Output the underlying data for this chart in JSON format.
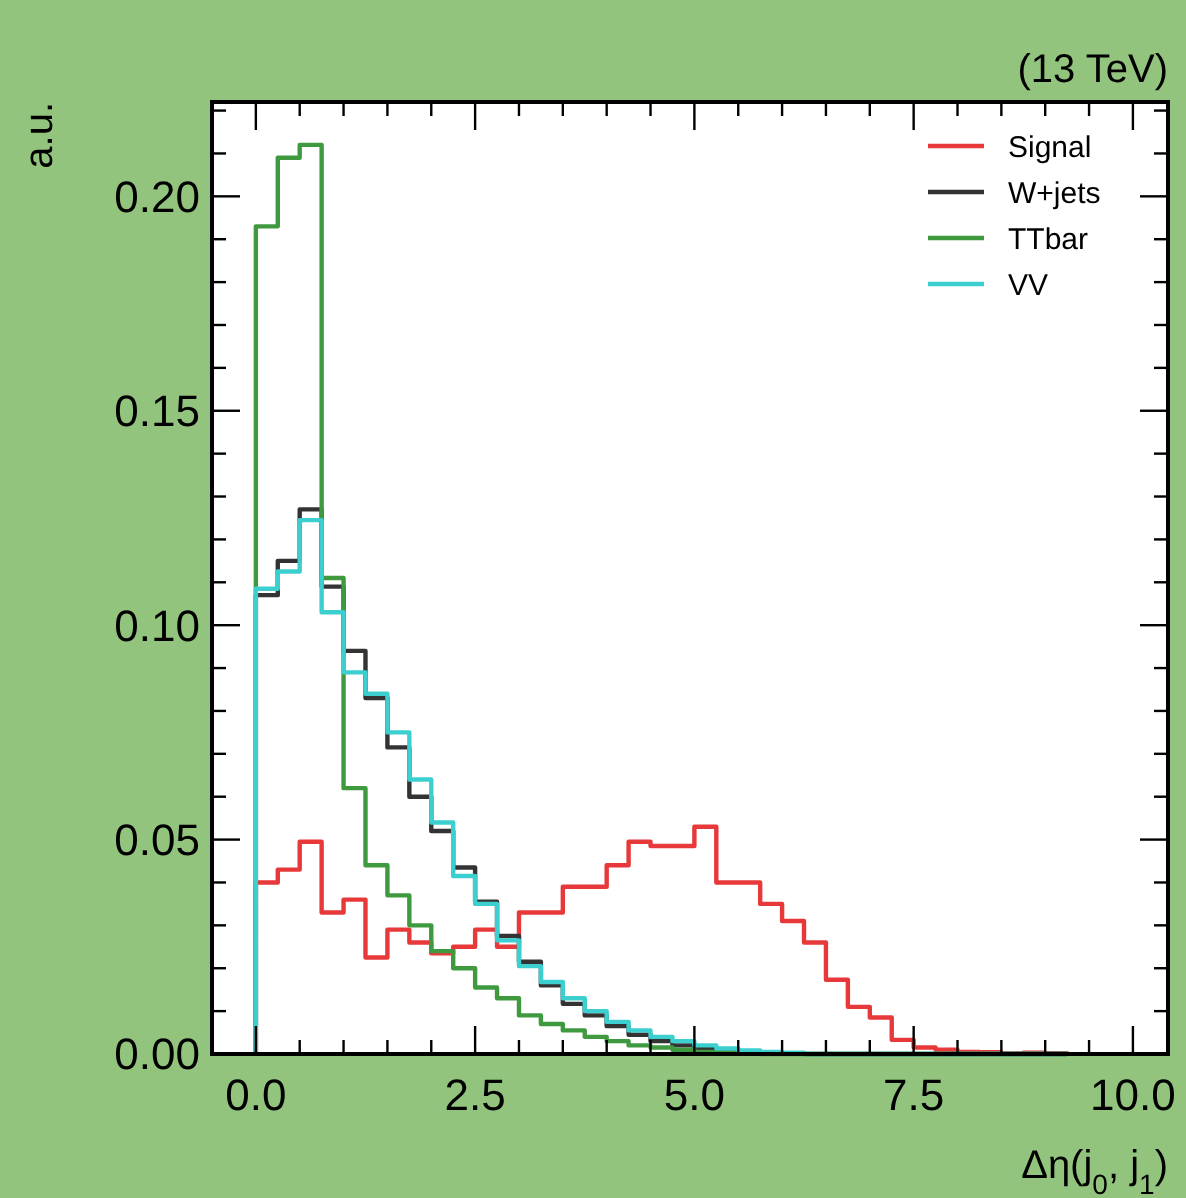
{
  "chart_data": {
    "type": "histogram",
    "title": "(13 TeV)",
    "xlabel": "Δη(j$_{0}$, j$_{1}$)",
    "ylabel": "a.u.",
    "bins": [
      0,
      0.25,
      0.5,
      0.75,
      1,
      1.25,
      1.5,
      1.75,
      2,
      2.25,
      2.5,
      2.75,
      3,
      3.25,
      3.5,
      3.75,
      4,
      4.25,
      4.5,
      4.75,
      5,
      5.25,
      5.5,
      5.75,
      6,
      6.25,
      6.5,
      6.75,
      7,
      7.25,
      7.5,
      7.75,
      8,
      8.25,
      8.5,
      8.75,
      9,
      9.25
    ],
    "series": [
      {
        "name": "Signal",
        "color": "#e8393a",
        "values": [
          0.04,
          0.043,
          0.0495,
          0.033,
          0.036,
          0.0225,
          0.029,
          0.026,
          0.0235,
          0.025,
          0.029,
          0.025,
          0.033,
          0.033,
          0.039,
          0.039,
          0.044,
          0.0495,
          0.0485,
          0.0485,
          0.053,
          0.04,
          0.04,
          0.035,
          0.031,
          0.026,
          0.0173,
          0.011,
          0.0085,
          0.0033,
          0.0015,
          0.001,
          0.0005,
          0.0004,
          0.0001,
          0.0003,
          0.0002
        ]
      },
      {
        "name": "W+jets",
        "color": "#333333",
        "values": [
          0.107,
          0.115,
          0.127,
          0.109,
          0.094,
          0.083,
          0.0715,
          0.06,
          0.052,
          0.0435,
          0.0355,
          0.0275,
          0.0215,
          0.016,
          0.0117,
          0.009,
          0.0065,
          0.0045,
          0.003,
          0.002,
          0.0013,
          0.0008,
          0.0005,
          0.0003,
          0.0002,
          0,
          0,
          0,
          0,
          0,
          0,
          0,
          0,
          0,
          0,
          0,
          0
        ]
      },
      {
        "name": "TTbar",
        "color": "#3f9a3f",
        "values": [
          0.193,
          0.209,
          0.212,
          0.111,
          0.062,
          0.044,
          0.037,
          0.03,
          0.024,
          0.02,
          0.0155,
          0.013,
          0.009,
          0.007,
          0.0055,
          0.004,
          0.003,
          0.002,
          0.0015,
          0.001,
          0.0005,
          0.0003,
          0.0002,
          0,
          0,
          0,
          0,
          0,
          0,
          0,
          0,
          0,
          0,
          0,
          0,
          0,
          0
        ]
      },
      {
        "name": "VV",
        "color": "#3ccfcf",
        "values": [
          0.1085,
          0.1125,
          0.1245,
          0.103,
          0.089,
          0.084,
          0.075,
          0.064,
          0.054,
          0.0415,
          0.035,
          0.0265,
          0.0205,
          0.0168,
          0.013,
          0.01,
          0.0075,
          0.0055,
          0.004,
          0.003,
          0.002,
          0.0013,
          0.0008,
          0.0005,
          0.0003,
          0,
          0,
          0,
          0,
          0,
          0,
          0,
          0,
          0,
          0,
          0,
          0
        ]
      }
    ],
    "xlim": [
      -0.5,
      10.4
    ],
    "ylim": [
      0,
      0.222
    ],
    "xticks": [
      {
        "value": 0,
        "label": "0.0"
      },
      {
        "value": 0.5,
        "label": null
      },
      {
        "value": 1,
        "label": null
      },
      {
        "value": 1.5,
        "label": null
      },
      {
        "value": 2,
        "label": null
      },
      {
        "value": 2.5,
        "label": "2.5"
      },
      {
        "value": 3,
        "label": null
      },
      {
        "value": 3.5,
        "label": null
      },
      {
        "value": 4,
        "label": null
      },
      {
        "value": 4.5,
        "label": null
      },
      {
        "value": 5,
        "label": "5.0"
      },
      {
        "value": 5.5,
        "label": null
      },
      {
        "value": 6,
        "label": null
      },
      {
        "value": 6.5,
        "label": null
      },
      {
        "value": 7,
        "label": null
      },
      {
        "value": 7.5,
        "label": "7.5"
      },
      {
        "value": 8,
        "label": null
      },
      {
        "value": 8.5,
        "label": null
      },
      {
        "value": 9,
        "label": null
      },
      {
        "value": 9.5,
        "label": null
      },
      {
        "value": 10,
        "label": "10.0"
      }
    ],
    "yticks": [
      {
        "value": 0,
        "label": "0.00"
      },
      {
        "value": 0.01,
        "label": null
      },
      {
        "value": 0.02,
        "label": null
      },
      {
        "value": 0.03,
        "label": null
      },
      {
        "value": 0.04,
        "label": null
      },
      {
        "value": 0.05,
        "label": "0.05"
      },
      {
        "value": 0.06,
        "label": null
      },
      {
        "value": 0.07,
        "label": null
      },
      {
        "value": 0.08,
        "label": null
      },
      {
        "value": 0.09,
        "label": null
      },
      {
        "value": 0.1,
        "label": "0.10"
      },
      {
        "value": 0.11,
        "label": null
      },
      {
        "value": 0.12,
        "label": null
      },
      {
        "value": 0.13,
        "label": null
      },
      {
        "value": 0.14,
        "label": null
      },
      {
        "value": 0.15,
        "label": "0.15"
      },
      {
        "value": 0.16,
        "label": null
      },
      {
        "value": 0.17,
        "label": null
      },
      {
        "value": 0.18,
        "label": null
      },
      {
        "value": 0.19,
        "label": null
      },
      {
        "value": 0.2,
        "label": "0.20"
      },
      {
        "value": 0.21,
        "label": null
      },
      {
        "value": 0.22,
        "label": null
      }
    ],
    "grid": false,
    "legend": "top right"
  }
}
